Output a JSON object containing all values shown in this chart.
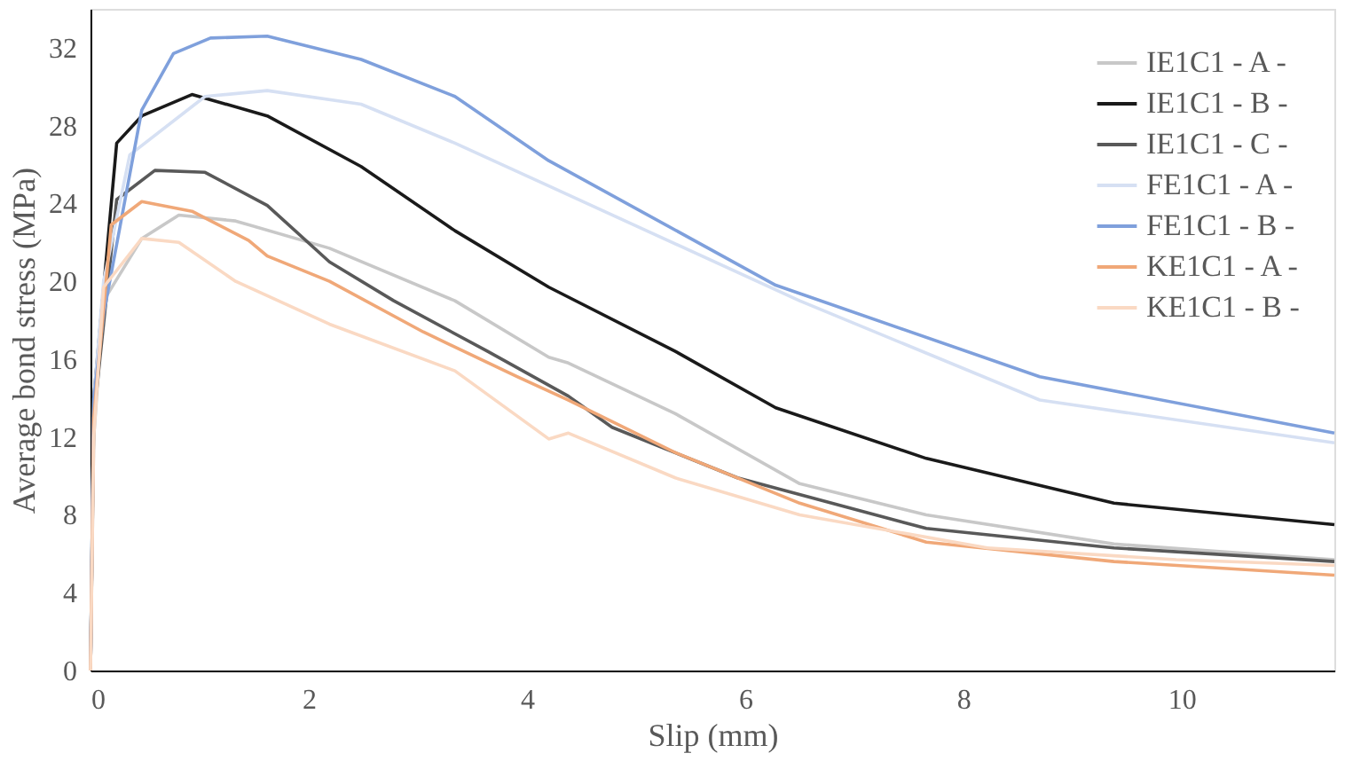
{
  "chart_data": {
    "type": "line",
    "xlabel": "Slip (mm)",
    "ylabel": "Average bond stress (MPa)",
    "xlim": [
      0,
      11.4
    ],
    "ylim": [
      0,
      34
    ],
    "xticks": [
      0,
      2,
      4,
      6,
      8,
      10
    ],
    "yticks": [
      0,
      4,
      8,
      12,
      16,
      20,
      24,
      28,
      32
    ],
    "grid": false,
    "legend": "top right",
    "marker": "none",
    "line_style": "solid",
    "series": [
      {
        "name": "IE1C1 - A -",
        "color": "#c8c8c8",
        "x": [
          0,
          0.03,
          0.12,
          0.47,
          0.81,
          1.33,
          2.19,
          3.34,
          4.2,
          4.38,
          5.36,
          6.5,
          7.66,
          9.38,
          11.4
        ],
        "values": [
          0,
          12,
          19,
          22.2,
          23.4,
          23.1,
          21.7,
          19,
          16.1,
          15.8,
          13.2,
          9.6,
          8,
          6.5,
          5.7
        ]
      },
      {
        "name": "IE1C1 - B -",
        "color": "#1a1a1a",
        "x": [
          0,
          0.03,
          0.24,
          0.47,
          0.93,
          1.62,
          2.48,
          3.34,
          4.2,
          5.36,
          6.28,
          7.66,
          9.38,
          11.4
        ],
        "values": [
          0,
          14,
          27.1,
          28.5,
          29.6,
          28.5,
          25.9,
          22.6,
          19.7,
          16.4,
          13.5,
          10.9,
          8.6,
          7.5
        ]
      },
      {
        "name": "IE1C1 - C -",
        "color": "#595959",
        "x": [
          0,
          0.03,
          0.24,
          0.59,
          1.05,
          1.62,
          2.19,
          2.78,
          3.64,
          4.38,
          4.78,
          5.93,
          7.66,
          9.38,
          11.4
        ],
        "values": [
          0,
          13,
          24.2,
          25.7,
          25.6,
          23.9,
          21,
          19,
          16.4,
          14.1,
          12.5,
          9.9,
          7.3,
          6.3,
          5.6
        ]
      },
      {
        "name": "FE1C1 - A -",
        "color": "#d6e0f3",
        "x": [
          0,
          0.03,
          0.12,
          0.36,
          1.05,
          1.62,
          2.48,
          3.34,
          4.2,
          6.5,
          8.7,
          11.4
        ],
        "values": [
          0,
          14,
          20,
          26.5,
          29.5,
          29.8,
          29.1,
          27.1,
          24.9,
          19,
          13.9,
          11.7
        ]
      },
      {
        "name": "FE1C1 - B -",
        "color": "#7fa0dc",
        "x": [
          0,
          0.03,
          0.12,
          0.47,
          0.76,
          1.1,
          1.62,
          2.48,
          3.34,
          4.2,
          6.28,
          8.7,
          11.4
        ],
        "values": [
          0,
          14,
          18.3,
          28.8,
          31.7,
          32.5,
          32.6,
          31.4,
          29.5,
          26.2,
          19.8,
          15.1,
          12.2
        ]
      },
      {
        "name": "KE1C1 - A -",
        "color": "#f0a878",
        "x": [
          0,
          0.03,
          0.19,
          0.47,
          0.93,
          1.45,
          1.62,
          2.19,
          3.05,
          3.91,
          4.38,
          5.36,
          6.5,
          7.66,
          9.38,
          11.4
        ],
        "values": [
          0,
          13,
          22.9,
          24.1,
          23.6,
          22.1,
          21.3,
          20,
          17.4,
          15.1,
          13.9,
          11.2,
          8.6,
          6.6,
          5.6,
          4.9
        ]
      },
      {
        "name": "KE1C1 - B -",
        "color": "#fad9c3",
        "x": [
          0,
          0.03,
          0.12,
          0.47,
          0.81,
          1.33,
          2.19,
          3.34,
          4.2,
          4.38,
          5.36,
          6.5,
          8.22,
          9.95,
          11.4
        ],
        "values": [
          0,
          12,
          19.7,
          22.2,
          22,
          20,
          17.8,
          15.4,
          11.9,
          12.2,
          9.9,
          8,
          6.3,
          5.7,
          5.4
        ]
      }
    ]
  }
}
